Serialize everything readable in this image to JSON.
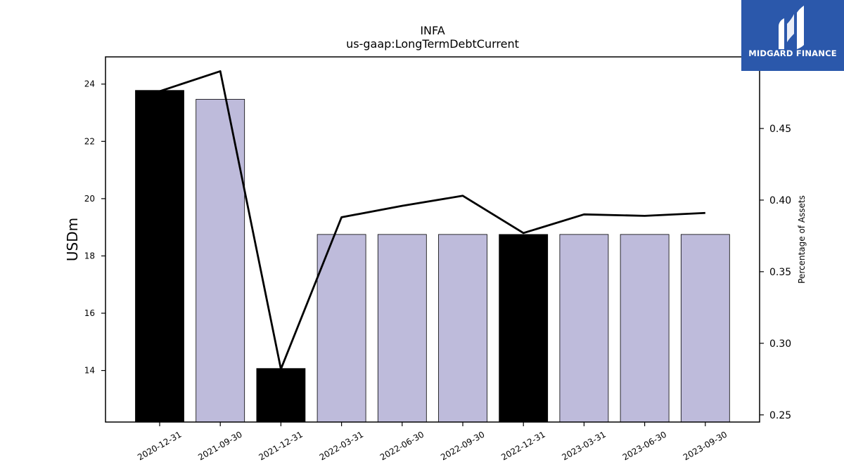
{
  "brand": {
    "name": "MIDGARD FINANCE",
    "bg_color": "#2b58ab",
    "icon": "midgard-m-logo-icon"
  },
  "chart_data": {
    "type": "bar",
    "title": "INFA",
    "subtitle": "us-gaap:LongTermDebtCurrent",
    "ylabel": "USDm",
    "y2label": "Percentage of Assets",
    "categories": [
      "2020-12-31",
      "2021-09-30",
      "2021-12-31",
      "2022-03-31",
      "2022-06-30",
      "2022-09-30",
      "2022-12-31",
      "2023-03-31",
      "2023-06-30",
      "2023-09-30"
    ],
    "values": [
      23.78,
      23.47,
      14.07,
      18.75,
      18.75,
      18.75,
      18.75,
      18.75,
      18.75,
      18.75
    ],
    "bar_colors": [
      "#000000",
      "#bebbdb",
      "#000000",
      "#bebbdb",
      "#bebbdb",
      "#bebbdb",
      "#000000",
      "#bebbdb",
      "#bebbdb",
      "#bebbdb"
    ],
    "ylim": [
      12.2,
      24.95
    ],
    "yticks": [
      14,
      16,
      18,
      20,
      22,
      24
    ],
    "line_series": {
      "axis": "right",
      "color": "#000000",
      "values": [
        0.476,
        0.49,
        0.282,
        0.388,
        0.396,
        0.403,
        0.377,
        0.39,
        0.389,
        0.391
      ]
    },
    "y2lim": [
      0.245,
      0.5
    ],
    "y2ticks": [
      0.25,
      0.3,
      0.35,
      0.4,
      0.45
    ],
    "y2tick_labels": [
      "0.25",
      "0.30",
      "0.35",
      "0.40",
      "0.45"
    ],
    "grid": false,
    "legend": "none"
  }
}
